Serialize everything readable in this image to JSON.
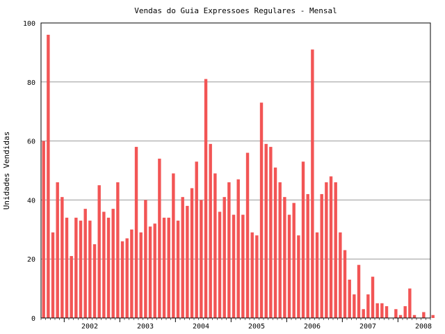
{
  "chart_data": {
    "type": "bar",
    "title": "Vendas do Guia Expressoes Regulares - Mensal",
    "xlabel": "",
    "ylabel": "Unidades Vendidas",
    "ylim": [
      0,
      100
    ],
    "yticks": [
      0,
      20,
      40,
      60,
      80,
      100
    ],
    "grid": true,
    "bar_color": "#f25555",
    "grid_color": "#999999",
    "x_start": "2001-08",
    "x_end": "2008-08",
    "xtick_labels": [
      "2002",
      "2003",
      "2004",
      "2005",
      "2006",
      "2007",
      "2008"
    ],
    "values": [
      60,
      96,
      29,
      46,
      41,
      34,
      21,
      34,
      33,
      37,
      33,
      25,
      45,
      36,
      34,
      37,
      46,
      26,
      27,
      30,
      58,
      29,
      40,
      31,
      32,
      54,
      34,
      34,
      49,
      33,
      41,
      38,
      44,
      53,
      40,
      81,
      59,
      49,
      36,
      41,
      46,
      35,
      47,
      35,
      56,
      29,
      28,
      73,
      59,
      58,
      51,
      46,
      41,
      35,
      39,
      28,
      53,
      42,
      91,
      29,
      42,
      46,
      48,
      46,
      29,
      23,
      13,
      8,
      18,
      3,
      8,
      14,
      5,
      5,
      4,
      0,
      3,
      1,
      4,
      10,
      1,
      0,
      2,
      0,
      1
    ]
  }
}
